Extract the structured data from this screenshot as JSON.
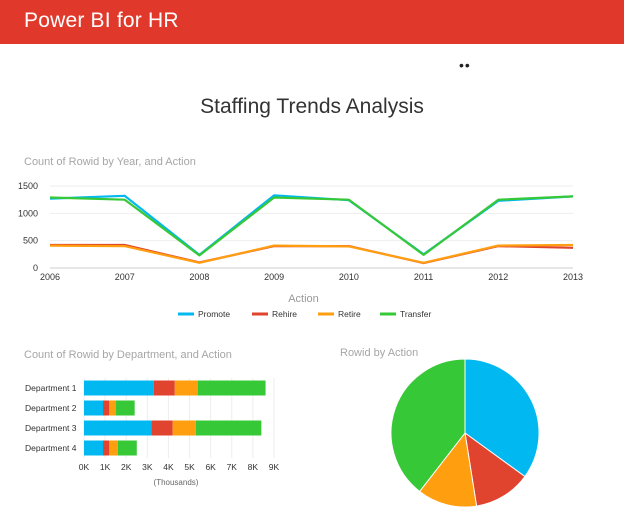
{
  "header": {
    "title": "Power BI for HR"
  },
  "toolbar": {
    "more_icon": "ellipsis-icon"
  },
  "report": {
    "title": "Staffing Trends Analysis"
  },
  "colors": {
    "header_bg": "#e0392b",
    "Promote": "#01b8f0",
    "Rehire": "#e0432e",
    "Retire": "#ff9e0f",
    "Transfer": "#37c837"
  },
  "chart_data": [
    {
      "type": "line",
      "title": "Count of Rowid by Year, and Action",
      "xlabel": "Action",
      "ylabel": "",
      "x": [
        "2006",
        "2007",
        "2008",
        "2009",
        "2010",
        "2011",
        "2012",
        "2013"
      ],
      "ylim": [
        0,
        1500
      ],
      "yticks": [
        "0",
        "500",
        "1000",
        "1500"
      ],
      "grid": true,
      "legend_position": "bottom",
      "series": [
        {
          "name": "Promote",
          "values": [
            1270,
            1320,
            240,
            1330,
            1240,
            250,
            1230,
            1310
          ]
        },
        {
          "name": "Rehire",
          "values": [
            420,
            420,
            100,
            400,
            400,
            90,
            400,
            370
          ]
        },
        {
          "name": "Retire",
          "values": [
            410,
            400,
            95,
            410,
            395,
            95,
            410,
            420
          ]
        },
        {
          "name": "Transfer",
          "values": [
            1290,
            1250,
            230,
            1290,
            1250,
            240,
            1250,
            1310
          ]
        }
      ]
    },
    {
      "type": "bar",
      "orientation": "horizontal",
      "stacked": true,
      "title": "Count of Rowid by Department, and Action",
      "categories": [
        "Department 1",
        "Department 2",
        "Department 3",
        "Department 4"
      ],
      "xticks": [
        "0K",
        "1K",
        "2K",
        "3K",
        "4K",
        "5K",
        "6K",
        "7K",
        "8K",
        "9K"
      ],
      "xlabel": "(Thousands)",
      "xlim": [
        0,
        9000
      ],
      "series": [
        {
          "name": "Promote",
          "values": [
            3300,
            900,
            3200,
            900
          ]
        },
        {
          "name": "Rehire",
          "values": [
            1000,
            300,
            1000,
            300
          ]
        },
        {
          "name": "Retire",
          "values": [
            1100,
            300,
            1100,
            400
          ]
        },
        {
          "name": "Transfer",
          "values": [
            3200,
            900,
            3100,
            900
          ]
        }
      ]
    },
    {
      "type": "pie",
      "title": "Rowid by Action",
      "labels": [
        "Promote",
        "Rehire",
        "Retire",
        "Transfer"
      ],
      "values": [
        35,
        12.5,
        13,
        39.5
      ]
    }
  ]
}
